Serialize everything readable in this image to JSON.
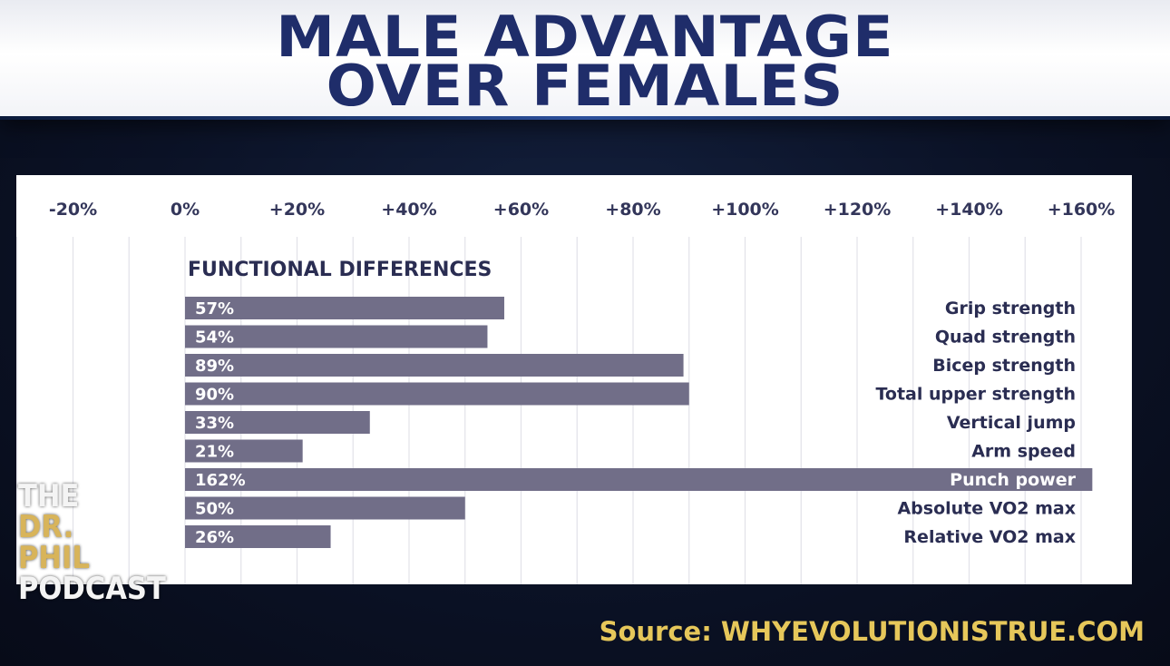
{
  "title_lines": [
    "MALE ADVANTAGE",
    "OVER FEMALES"
  ],
  "source": "Source: WHYEVOLUTIONISTRUE.COM",
  "logo_lines": [
    "THE",
    "DR. PHIL",
    "PODCAST"
  ],
  "colors": {
    "bar": "#716e88",
    "title": "#1f2d6a",
    "source": "#e6c75a",
    "panel": "#ffffff",
    "grid": "#e2e2e8"
  },
  "chart_data": {
    "type": "bar",
    "orientation": "horizontal",
    "title": "FUNCTIONAL DIFFERENCES",
    "xlim": [
      -20,
      162
    ],
    "ticks": [
      -20,
      0,
      20,
      40,
      60,
      80,
      100,
      120,
      140,
      160
    ],
    "tick_labels": [
      "-20%",
      "0%",
      "+20%",
      "+40%",
      "+60%",
      "+80%",
      "+100%",
      "+120%",
      "+140%",
      "+160%"
    ],
    "categories": [
      "Grip strength",
      "Quad strength",
      "Bicep strength",
      "Total upper strength",
      "Vertical jump",
      "Arm speed",
      "Punch power",
      "Absolute VO2 max",
      "Relative VO2 max"
    ],
    "values": [
      57,
      54,
      89,
      90,
      33,
      21,
      162,
      50,
      26
    ],
    "value_labels": [
      "57%",
      "54%",
      "89%",
      "90%",
      "33%",
      "21%",
      "162%",
      "50%",
      "26%"
    ],
    "grid": true,
    "xlabel": "",
    "ylabel": ""
  }
}
